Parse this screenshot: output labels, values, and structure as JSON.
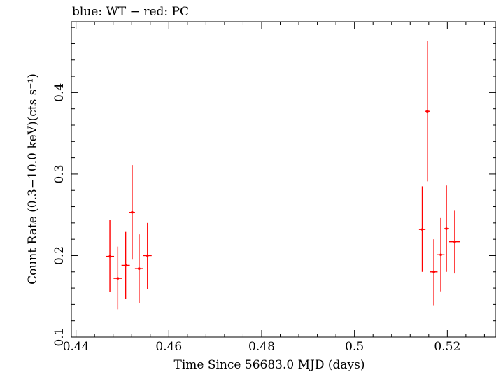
{
  "chart_data": {
    "type": "scatter",
    "title": "blue: WT − red: PC",
    "xlabel": "Time Since 56683.0 MJD (days)",
    "ylabel": "Count Rate (0.3−10.0 keV)(cts s⁻¹)",
    "xlim": [
      0.439,
      0.5305
    ],
    "ylim": [
      0.1,
      0.487
    ],
    "xticks": [
      0.44,
      0.46,
      0.48,
      0.5,
      0.52
    ],
    "xtick_labels": [
      "0.44",
      "0.46",
      "0.48",
      "0.5",
      "0.52"
    ],
    "yticks": [
      0.1,
      0.2,
      0.3,
      0.4
    ],
    "ytick_labels": [
      "0.1",
      "0.2",
      "0.3",
      "0.4"
    ],
    "grid": false,
    "series": [
      {
        "name": "PC",
        "color": "#ff0000",
        "points": [
          {
            "x": 0.4473,
            "y": 0.199,
            "xerr": 0.0009,
            "ylo": 0.155,
            "yhi": 0.244
          },
          {
            "x": 0.449,
            "y": 0.172,
            "xerr": 0.0009,
            "ylo": 0.134,
            "yhi": 0.211
          },
          {
            "x": 0.4507,
            "y": 0.188,
            "xerr": 0.0009,
            "ylo": 0.147,
            "yhi": 0.229
          },
          {
            "x": 0.4521,
            "y": 0.253,
            "xerr": 0.0006,
            "ylo": 0.195,
            "yhi": 0.311
          },
          {
            "x": 0.4536,
            "y": 0.184,
            "xerr": 0.0009,
            "ylo": 0.142,
            "yhi": 0.226
          },
          {
            "x": 0.4554,
            "y": 0.2,
            "xerr": 0.0009,
            "ylo": 0.159,
            "yhi": 0.24
          },
          {
            "x": 0.5146,
            "y": 0.232,
            "xerr": 0.0007,
            "ylo": 0.18,
            "yhi": 0.285
          },
          {
            "x": 0.5157,
            "y": 0.377,
            "xerr": 0.0005,
            "ylo": 0.291,
            "yhi": 0.463
          },
          {
            "x": 0.5171,
            "y": 0.18,
            "xerr": 0.0008,
            "ylo": 0.139,
            "yhi": 0.22
          },
          {
            "x": 0.5186,
            "y": 0.201,
            "xerr": 0.0008,
            "ylo": 0.156,
            "yhi": 0.246
          },
          {
            "x": 0.5198,
            "y": 0.233,
            "xerr": 0.0006,
            "ylo": 0.18,
            "yhi": 0.286
          },
          {
            "x": 0.5216,
            "y": 0.217,
            "xerr": 0.0012,
            "ylo": 0.178,
            "yhi": 0.255
          }
        ]
      }
    ]
  }
}
